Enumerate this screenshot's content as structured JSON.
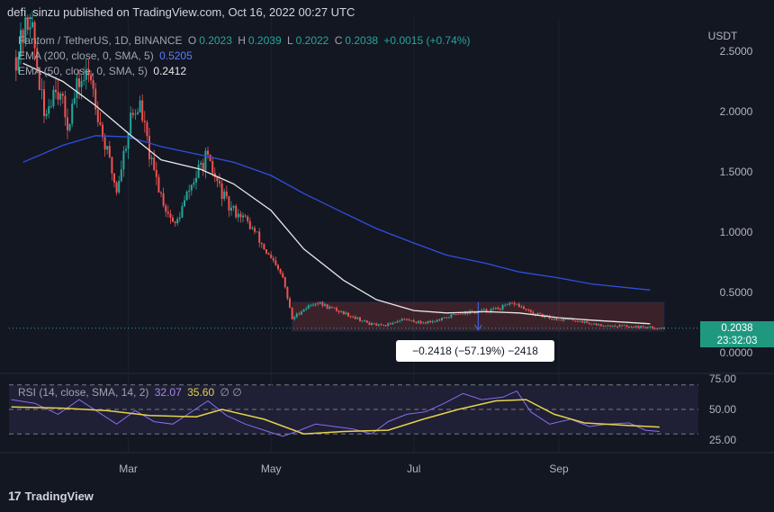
{
  "header": {
    "publisher": "defi_sinzu published on TradingView.com, Oct 16, 2022 00:27 UTC"
  },
  "legend": {
    "symbol": "Fantom / TetherUS, 1D, BINANCE",
    "open_label": "O",
    "open": "0.2023",
    "high_label": "H",
    "high": "0.2039",
    "low_label": "L",
    "low": "0.2022",
    "close_label": "C",
    "close": "0.2038",
    "change": "+0.0015 (+0.74%)",
    "ema200_label": "EMA (200, close, 0, SMA, 5)",
    "ema200_value": "0.5205",
    "ema50_label": "EMA (50, close, 0, SMA, 5)",
    "ema50_value": "0.2412",
    "rsi_label": "RSI (14, close, SMA, 14, 2)",
    "rsi_value": "32.07",
    "rsi_ma_value": "35.60",
    "rsi_extra": "∅ ∅"
  },
  "price_tag": {
    "price": "0.2038",
    "countdown": "23:32:03"
  },
  "measure": {
    "label": "−0.2418 (−57.19%) −2418",
    "top": 0.42,
    "bottom": 0.18,
    "start": "2022-05-10",
    "end": "2022-10-16"
  },
  "branding": {
    "text": "TradingView"
  },
  "colors": {
    "bg": "#131722",
    "up": "#26a69a",
    "down": "#ef5350",
    "ema200": "#2f4fe0",
    "ema50": "#e8e8e8",
    "rsi": "#8a6cf0",
    "rsi_ma": "#e6d34a",
    "price_tag": "#1e9980"
  },
  "chart_data": [
    {
      "type": "candlestick",
      "title": "Fantom / TetherUS, 1D, BINANCE",
      "currency": "USDT",
      "y_ticks": [
        "2.5000",
        "2.0000",
        "1.5000",
        "1.0000",
        "0.5000",
        "0.0000"
      ],
      "x_ticks": [
        "Mar",
        "May",
        "Jul",
        "Sep"
      ],
      "ylim": [
        -0.2,
        2.7
      ],
      "series": [
        {
          "name": "EMA (200, close, 0, SMA, 5)",
          "points": [
            [
              "2022-01-15",
              1.58
            ],
            [
              "2022-02-01",
              1.72
            ],
            [
              "2022-02-15",
              1.8
            ],
            [
              "2022-03-01",
              1.79
            ],
            [
              "2022-03-15",
              1.71
            ],
            [
              "2022-04-01",
              1.64
            ],
            [
              "2022-04-15",
              1.58
            ],
            [
              "2022-05-01",
              1.47
            ],
            [
              "2022-05-15",
              1.32
            ],
            [
              "2022-06-01",
              1.16
            ],
            [
              "2022-06-15",
              1.03
            ],
            [
              "2022-07-01",
              0.91
            ],
            [
              "2022-07-15",
              0.81
            ],
            [
              "2022-08-01",
              0.74
            ],
            [
              "2022-08-15",
              0.67
            ],
            [
              "2022-09-01",
              0.62
            ],
            [
              "2022-09-15",
              0.57
            ],
            [
              "2022-10-10",
              0.52
            ]
          ]
        },
        {
          "name": "EMA (50, close, 0, SMA, 5)",
          "points": [
            [
              "2022-01-15",
              2.4
            ],
            [
              "2022-02-01",
              2.25
            ],
            [
              "2022-02-15",
              2.05
            ],
            [
              "2022-03-01",
              1.82
            ],
            [
              "2022-03-15",
              1.6
            ],
            [
              "2022-04-01",
              1.52
            ],
            [
              "2022-04-15",
              1.4
            ],
            [
              "2022-05-01",
              1.18
            ],
            [
              "2022-05-15",
              0.86
            ],
            [
              "2022-06-01",
              0.6
            ],
            [
              "2022-06-15",
              0.44
            ],
            [
              "2022-07-01",
              0.35
            ],
            [
              "2022-07-15",
              0.33
            ],
            [
              "2022-08-01",
              0.34
            ],
            [
              "2022-08-15",
              0.33
            ],
            [
              "2022-09-01",
              0.29
            ],
            [
              "2022-09-15",
              0.27
            ],
            [
              "2022-10-10",
              0.24
            ]
          ]
        }
      ],
      "close_path": [
        [
          "2022-01-12",
          2.45
        ],
        [
          "2022-01-18",
          2.8
        ],
        [
          "2022-01-24",
          1.95
        ],
        [
          "2022-01-29",
          2.25
        ],
        [
          "2022-02-03",
          1.9
        ],
        [
          "2022-02-08",
          2.25
        ],
        [
          "2022-02-13",
          2.3
        ],
        [
          "2022-02-18",
          1.8
        ],
        [
          "2022-02-24",
          1.35
        ],
        [
          "2022-03-02",
          1.95
        ],
        [
          "2022-03-06",
          2.05
        ],
        [
          "2022-03-11",
          1.55
        ],
        [
          "2022-03-17",
          1.2
        ],
        [
          "2022-03-21",
          1.05
        ],
        [
          "2022-03-27",
          1.35
        ],
        [
          "2022-04-03",
          1.62
        ],
        [
          "2022-04-07",
          1.45
        ],
        [
          "2022-04-13",
          1.2
        ],
        [
          "2022-04-18",
          1.15
        ],
        [
          "2022-04-24",
          1.0
        ],
        [
          "2022-04-30",
          0.8
        ],
        [
          "2022-05-06",
          0.62
        ],
        [
          "2022-05-10",
          0.28
        ],
        [
          "2022-05-14",
          0.35
        ],
        [
          "2022-05-20",
          0.42
        ],
        [
          "2022-05-28",
          0.36
        ],
        [
          "2022-06-05",
          0.3
        ],
        [
          "2022-06-12",
          0.24
        ],
        [
          "2022-06-18",
          0.22
        ],
        [
          "2022-06-26",
          0.28
        ],
        [
          "2022-07-04",
          0.25
        ],
        [
          "2022-07-12",
          0.27
        ],
        [
          "2022-07-20",
          0.33
        ],
        [
          "2022-07-28",
          0.34
        ],
        [
          "2022-08-05",
          0.36
        ],
        [
          "2022-08-13",
          0.41
        ],
        [
          "2022-08-20",
          0.33
        ],
        [
          "2022-08-30",
          0.28
        ],
        [
          "2022-09-08",
          0.27
        ],
        [
          "2022-09-18",
          0.23
        ],
        [
          "2022-09-30",
          0.22
        ],
        [
          "2022-10-16",
          0.2038
        ]
      ]
    },
    {
      "type": "line",
      "title": "RSI (14, close, SMA, 14, 2)",
      "y_ticks": [
        "75.00",
        "50.00",
        "25.00"
      ],
      "ylim": [
        20,
        80
      ],
      "bands": [
        30,
        50,
        70
      ],
      "series": [
        {
          "name": "RSI (14, close, SMA, 14, 2)",
          "points": [
            [
              "2022-01-10",
              58
            ],
            [
              "2022-01-20",
              55
            ],
            [
              "2022-01-30",
              46
            ],
            [
              "2022-02-08",
              58
            ],
            [
              "2022-02-16",
              48
            ],
            [
              "2022-02-24",
              38
            ],
            [
              "2022-03-04",
              49
            ],
            [
              "2022-03-12",
              40
            ],
            [
              "2022-03-20",
              38
            ],
            [
              "2022-03-28",
              48
            ],
            [
              "2022-04-04",
              57
            ],
            [
              "2022-04-12",
              45
            ],
            [
              "2022-04-20",
              38
            ],
            [
              "2022-04-28",
              33
            ],
            [
              "2022-05-06",
              28
            ],
            [
              "2022-05-12",
              32
            ],
            [
              "2022-05-20",
              38
            ],
            [
              "2022-05-28",
              36
            ],
            [
              "2022-06-05",
              34
            ],
            [
              "2022-06-13",
              30
            ],
            [
              "2022-06-20",
              40
            ],
            [
              "2022-06-28",
              46
            ],
            [
              "2022-07-06",
              48
            ],
            [
              "2022-07-14",
              55
            ],
            [
              "2022-07-22",
              63
            ],
            [
              "2022-07-30",
              58
            ],
            [
              "2022-08-08",
              60
            ],
            [
              "2022-08-14",
              65
            ],
            [
              "2022-08-20",
              48
            ],
            [
              "2022-08-28",
              38
            ],
            [
              "2022-09-06",
              42
            ],
            [
              "2022-09-14",
              36
            ],
            [
              "2022-09-22",
              38
            ],
            [
              "2022-10-01",
              39
            ],
            [
              "2022-10-08",
              33
            ],
            [
              "2022-10-14",
              32
            ]
          ]
        },
        {
          "name": "RSI-based MA",
          "points": [
            [
              "2022-01-10",
              52
            ],
            [
              "2022-02-01",
              51
            ],
            [
              "2022-02-20",
              49
            ],
            [
              "2022-03-10",
              45
            ],
            [
              "2022-03-30",
              44
            ],
            [
              "2022-04-10",
              50
            ],
            [
              "2022-04-28",
              42
            ],
            [
              "2022-05-15",
              30
            ],
            [
              "2022-06-01",
              32
            ],
            [
              "2022-06-20",
              33
            ],
            [
              "2022-07-05",
              42
            ],
            [
              "2022-07-20",
              50
            ],
            [
              "2022-08-05",
              57
            ],
            [
              "2022-08-18",
              58
            ],
            [
              "2022-08-30",
              46
            ],
            [
              "2022-09-12",
              39
            ],
            [
              "2022-09-30",
              37
            ],
            [
              "2022-10-14",
              35.6
            ]
          ]
        }
      ]
    }
  ]
}
